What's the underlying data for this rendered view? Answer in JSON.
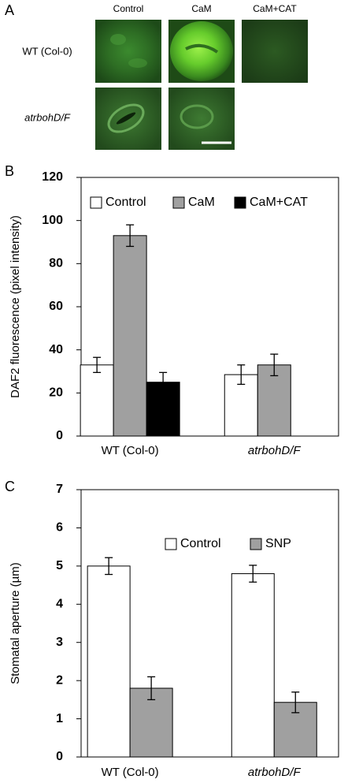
{
  "panel_a": {
    "label": "A",
    "columns": [
      "Control",
      "CaM",
      "CaM+CAT"
    ],
    "rows": [
      "WT (Col-0)",
      "atrbohD/F"
    ]
  },
  "chart_data": [
    {
      "type": "bar",
      "panel_label": "B",
      "y_label": "DAF2 fluorescence (pixel intensity)",
      "categories": [
        "WT (Col-0)",
        "atrbohD/F"
      ],
      "series": [
        {
          "name": "Control",
          "color": "#ffffff",
          "values": [
            33,
            28.5
          ],
          "errors": [
            3.5,
            4.5
          ]
        },
        {
          "name": "CaM",
          "color": "#a0a0a0",
          "values": [
            93,
            33
          ],
          "errors": [
            5,
            5
          ]
        },
        {
          "name": "CaM+CAT",
          "color": "#000000",
          "values": [
            25,
            null
          ],
          "errors": [
            4.5,
            null
          ]
        }
      ],
      "ylim": [
        0,
        120
      ],
      "yticks": [
        0,
        20,
        40,
        60,
        80,
        100,
        120
      ],
      "legend": "top"
    },
    {
      "type": "bar",
      "panel_label": "C",
      "y_label": "Stomatal aperture (µm)",
      "categories": [
        "WT (Col-0)",
        "atrbohD/F"
      ],
      "series": [
        {
          "name": "Control",
          "color": "#ffffff",
          "values": [
            5.0,
            4.8
          ],
          "errors": [
            0.22,
            0.22
          ]
        },
        {
          "name": "SNP",
          "color": "#a0a0a0",
          "values": [
            1.8,
            1.43
          ],
          "errors": [
            0.3,
            0.27
          ]
        }
      ],
      "ylim": [
        0,
        7
      ],
      "yticks": [
        0,
        1,
        2,
        3,
        4,
        5,
        6,
        7
      ],
      "legend": "top-right"
    }
  ]
}
